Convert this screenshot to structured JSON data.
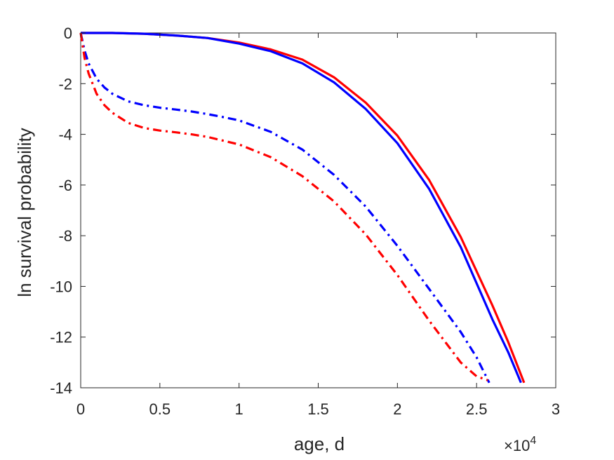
{
  "chart_data": {
    "type": "line",
    "title": "",
    "xlabel": "age, d",
    "ylabel": "ln survival probability",
    "xlim": [
      0,
      30000
    ],
    "ylim": [
      -14,
      0
    ],
    "x_ticks": [
      0,
      5000,
      10000,
      15000,
      20000,
      25000,
      30000
    ],
    "x_tick_labels": [
      "0",
      "0.5",
      "1",
      "1.5",
      "2",
      "2.5",
      "3"
    ],
    "y_ticks": [
      0,
      -2,
      -4,
      -6,
      -8,
      -10,
      -12,
      -14
    ],
    "y_tick_labels": [
      "0",
      "-2",
      "-4",
      "-6",
      "-8",
      "-10",
      "-12",
      "-14"
    ],
    "x_exponent_label": {
      "base": "×10",
      "exponent": "4"
    },
    "grid": false,
    "legend": "none",
    "series": [
      {
        "color": "#ff0000",
        "line_style": "solid",
        "x": [
          0,
          2000,
          4000,
          6000,
          8000,
          10000,
          12000,
          14000,
          16000,
          18000,
          20000,
          22000,
          24000,
          26000,
          27000,
          28000
        ],
        "y": [
          0,
          0,
          -0.03,
          -0.1,
          -0.2,
          -0.38,
          -0.65,
          -1.05,
          -1.75,
          -2.75,
          -4.05,
          -5.8,
          -8.05,
          -10.75,
          -12.2,
          -13.8
        ]
      },
      {
        "color": "#0000ff",
        "line_style": "solid",
        "x": [
          0,
          2000,
          4000,
          6000,
          8000,
          10000,
          12000,
          14000,
          16000,
          18000,
          20000,
          22000,
          24000,
          26000,
          27000,
          27800
        ],
        "y": [
          0,
          0,
          -0.03,
          -0.1,
          -0.2,
          -0.42,
          -0.72,
          -1.2,
          -1.95,
          -3.0,
          -4.35,
          -6.15,
          -8.45,
          -11.3,
          -12.6,
          -13.8
        ]
      },
      {
        "color": "#0000ff",
        "line_style": "dashdot",
        "x": [
          0,
          250,
          500,
          1000,
          1500,
          2000,
          3000,
          4000,
          5000,
          6000,
          7000,
          8000,
          9000,
          10000,
          12000,
          14000,
          16000,
          18000,
          20000,
          22000,
          24000,
          25000,
          25800
        ],
        "y": [
          0,
          -0.7,
          -1.2,
          -1.8,
          -2.15,
          -2.4,
          -2.7,
          -2.85,
          -2.95,
          -3.02,
          -3.1,
          -3.2,
          -3.32,
          -3.45,
          -3.9,
          -4.6,
          -5.6,
          -6.85,
          -8.4,
          -10.1,
          -11.8,
          -12.8,
          -13.8
        ]
      },
      {
        "color": "#ff0000",
        "line_style": "dashdot",
        "x": [
          0,
          250,
          500,
          1000,
          1500,
          2000,
          3000,
          4000,
          5000,
          6000,
          7000,
          8000,
          9000,
          10000,
          12000,
          14000,
          16000,
          18000,
          20000,
          22000,
          24000,
          25000,
          25700
        ],
        "y": [
          0,
          -1.0,
          -1.6,
          -2.4,
          -2.85,
          -3.15,
          -3.55,
          -3.75,
          -3.85,
          -3.92,
          -4.0,
          -4.1,
          -4.25,
          -4.4,
          -4.9,
          -5.65,
          -6.65,
          -7.95,
          -9.55,
          -11.35,
          -13.0,
          -13.55,
          -13.7
        ]
      }
    ]
  }
}
